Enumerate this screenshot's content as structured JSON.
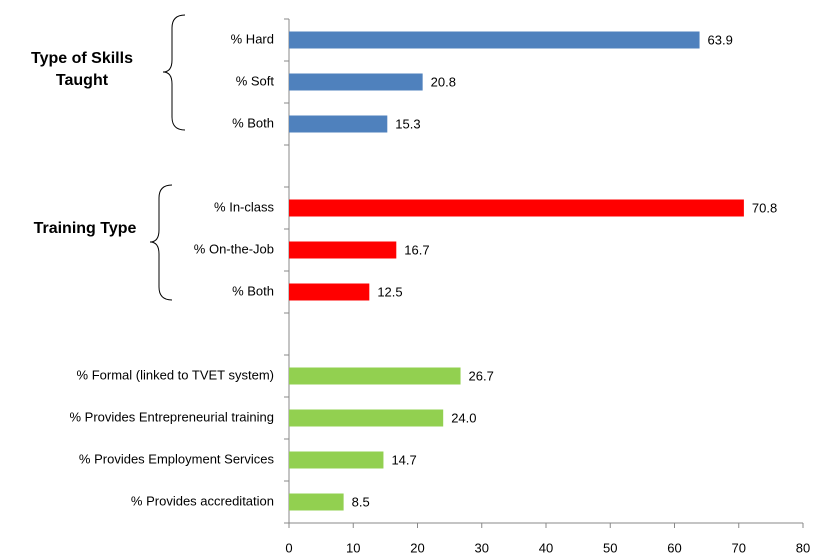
{
  "chart_data": {
    "type": "hbar",
    "categories": [
      "% Hard",
      "% Soft",
      "% Both",
      null,
      "% In-class",
      "% On-the-Job",
      "% Both",
      null,
      "% Formal (linked to TVET system)",
      "% Provides Entrepreneurial training",
      "% Provides Employment  Services",
      "% Provides accreditation"
    ],
    "values": [
      63.9,
      20.8,
      15.3,
      null,
      70.8,
      16.7,
      12.5,
      null,
      26.7,
      24.0,
      14.7,
      8.5
    ],
    "value_labels": [
      "63.9",
      "20.8",
      "15.3",
      null,
      "70.8",
      "16.7",
      "12.5",
      null,
      "26.7",
      "24.0",
      "14.7",
      "8.5"
    ],
    "colors": [
      "#4f81bd",
      "#4f81bd",
      "#4f81bd",
      null,
      "#ff0000",
      "#ff0000",
      "#ff0000",
      null,
      "#92d050",
      "#92d050",
      "#92d050",
      "#92d050"
    ],
    "annotations": [
      "Type of Skills Taught",
      "Training Type"
    ],
    "xlim": [
      0,
      80
    ],
    "xticks": [
      0,
      10,
      20,
      30,
      40,
      50,
      60,
      70,
      80
    ],
    "grid": false
  }
}
